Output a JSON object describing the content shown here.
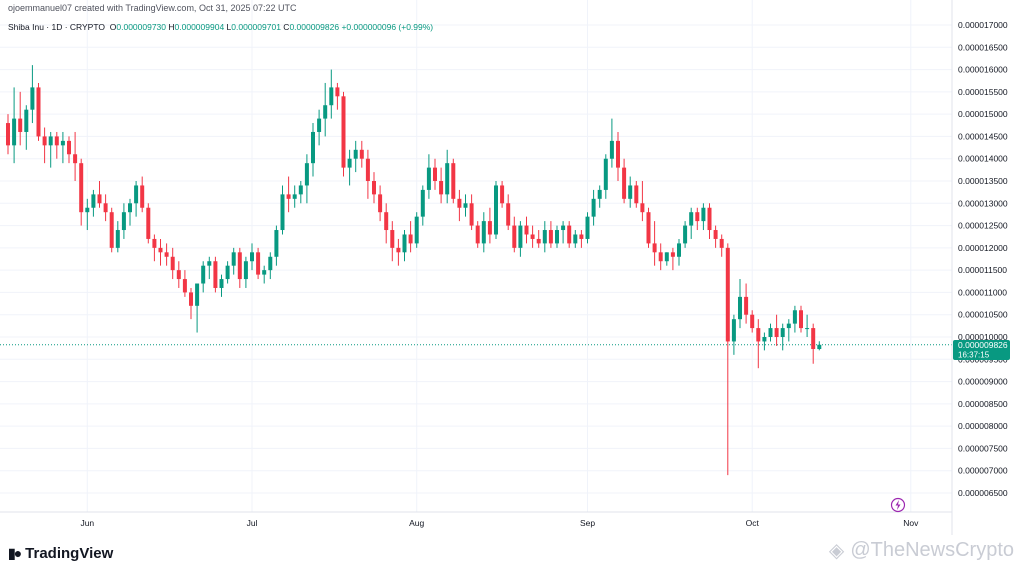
{
  "header": {
    "created_by": "ojoemmanuel07 created with TradingView.com, Oct 31, 2025 07:22 UTC"
  },
  "symbol_bar": {
    "symbol": "Shiba Inu · 1D · CRYPTO",
    "o_label": "O",
    "o_value": "0.000009730",
    "h_label": "H",
    "h_value": "0.000009904",
    "l_label": "L",
    "l_value": "0.000009701",
    "c_label": "C",
    "c_value": "0.000009826",
    "change": "+0.000000096 (+0.99%)"
  },
  "price_badge": {
    "price": "0.000009826",
    "countdown": "16:37:15"
  },
  "footer": {
    "brand": "TradingView",
    "watermark": "@TheNewsCrypto"
  },
  "colors": {
    "up": "#089981",
    "down": "#f23645",
    "grid": "#f0f3fa",
    "last_price": "#089981"
  },
  "icons": {
    "lightning": "lightning-icon",
    "brand_logo": "tradingview-logo-icon",
    "watermark": "watermark-logo-icon"
  },
  "chart_data": {
    "type": "candlestick",
    "title": "",
    "xlabel": "",
    "ylabel": "",
    "ylim": [
      6.3e-06,
      1.71e-05
    ],
    "grid": true,
    "y_ticks": [
      "0.000006500",
      "0.000007000",
      "0.000007500",
      "0.000008000",
      "0.000008500",
      "0.000009000",
      "0.000009500",
      "0.000010000",
      "0.000010500",
      "0.000011000",
      "0.000011500",
      "0.000012000",
      "0.000012500",
      "0.000013000",
      "0.000013500",
      "0.000014000",
      "0.000014500",
      "0.000015000",
      "0.000015500",
      "0.000016000",
      "0.000016500",
      "0.000017000"
    ],
    "x_ticks": [
      {
        "label": "Jun",
        "index": 13
      },
      {
        "label": "Jul",
        "index": 40
      },
      {
        "label": "Aug",
        "index": 67
      },
      {
        "label": "Sep",
        "index": 95
      },
      {
        "label": "Oct",
        "index": 122
      },
      {
        "label": "Nov",
        "index": 148
      }
    ],
    "last_price": 9.826e-06,
    "candles": [
      [
        14.8,
        15.0,
        14.1,
        14.3
      ],
      [
        14.3,
        15.6,
        13.9,
        14.9
      ],
      [
        14.9,
        15.5,
        14.3,
        14.6
      ],
      [
        14.6,
        15.2,
        14.2,
        15.1
      ],
      [
        15.1,
        16.1,
        14.8,
        15.6
      ],
      [
        15.6,
        15.7,
        14.4,
        14.5
      ],
      [
        14.5,
        14.7,
        13.9,
        14.3
      ],
      [
        14.3,
        14.6,
        13.8,
        14.5
      ],
      [
        14.5,
        14.6,
        14.0,
        14.3
      ],
      [
        14.3,
        14.6,
        13.9,
        14.4
      ],
      [
        14.4,
        14.5,
        13.9,
        14.1
      ],
      [
        14.1,
        14.6,
        13.5,
        13.9
      ],
      [
        13.9,
        14.0,
        12.5,
        12.8
      ],
      [
        12.8,
        13.1,
        12.4,
        12.9
      ],
      [
        12.9,
        13.3,
        12.7,
        13.2
      ],
      [
        13.2,
        13.5,
        12.9,
        13.0
      ],
      [
        13.0,
        13.2,
        12.6,
        12.8
      ],
      [
        12.8,
        12.9,
        11.9,
        12.0
      ],
      [
        12.0,
        12.6,
        11.9,
        12.4
      ],
      [
        12.4,
        13.0,
        12.2,
        12.8
      ],
      [
        12.8,
        13.1,
        12.5,
        13.0
      ],
      [
        13.0,
        13.5,
        12.7,
        13.4
      ],
      [
        13.4,
        13.6,
        12.8,
        12.9
      ],
      [
        12.9,
        13.0,
        12.1,
        12.2
      ],
      [
        12.2,
        12.3,
        11.7,
        12.0
      ],
      [
        12.0,
        12.2,
        11.6,
        11.9
      ],
      [
        11.9,
        12.1,
        11.6,
        11.8
      ],
      [
        11.8,
        12.0,
        11.3,
        11.5
      ],
      [
        11.5,
        11.7,
        11.1,
        11.3
      ],
      [
        11.3,
        11.5,
        10.9,
        11.0
      ],
      [
        11.0,
        11.1,
        10.4,
        10.7
      ],
      [
        10.7,
        11.2,
        10.1,
        11.2
      ],
      [
        11.2,
        11.7,
        11.0,
        11.6
      ],
      [
        11.6,
        11.8,
        11.3,
        11.7
      ],
      [
        11.7,
        11.8,
        11.0,
        11.1
      ],
      [
        11.1,
        11.4,
        10.9,
        11.3
      ],
      [
        11.3,
        11.7,
        11.2,
        11.6
      ],
      [
        11.6,
        12.0,
        11.4,
        11.9
      ],
      [
        11.9,
        12.0,
        11.1,
        11.3
      ],
      [
        11.3,
        11.8,
        11.1,
        11.7
      ],
      [
        11.7,
        12.1,
        11.5,
        11.9
      ],
      [
        11.9,
        12.0,
        11.3,
        11.4
      ],
      [
        11.4,
        11.6,
        11.2,
        11.5
      ],
      [
        11.5,
        11.9,
        11.3,
        11.8
      ],
      [
        11.8,
        12.5,
        11.6,
        12.4
      ],
      [
        12.4,
        13.4,
        12.3,
        13.2
      ],
      [
        13.2,
        13.6,
        12.8,
        13.1
      ],
      [
        13.1,
        13.4,
        12.9,
        13.2
      ],
      [
        13.2,
        13.5,
        13.0,
        13.4
      ],
      [
        13.4,
        14.1,
        13.0,
        13.9
      ],
      [
        13.9,
        14.8,
        13.6,
        14.6
      ],
      [
        14.6,
        15.1,
        14.3,
        14.9
      ],
      [
        14.9,
        15.7,
        14.5,
        15.2
      ],
      [
        15.2,
        16.0,
        14.9,
        15.6
      ],
      [
        15.6,
        15.7,
        15.1,
        15.4
      ],
      [
        15.4,
        15.5,
        13.6,
        13.8
      ],
      [
        13.8,
        14.2,
        13.4,
        14.0
      ],
      [
        14.0,
        14.4,
        13.7,
        14.2
      ],
      [
        14.2,
        14.4,
        13.8,
        14.0
      ],
      [
        14.0,
        14.2,
        13.1,
        13.5
      ],
      [
        13.5,
        13.7,
        13.0,
        13.2
      ],
      [
        13.2,
        13.4,
        12.6,
        12.8
      ],
      [
        12.8,
        13.0,
        12.1,
        12.4
      ],
      [
        12.4,
        12.6,
        11.7,
        12.0
      ],
      [
        12.0,
        12.2,
        11.6,
        11.9
      ],
      [
        11.9,
        12.4,
        11.7,
        12.3
      ],
      [
        12.3,
        12.6,
        11.9,
        12.1
      ],
      [
        12.1,
        12.8,
        12.0,
        12.7
      ],
      [
        12.7,
        13.4,
        12.5,
        13.3
      ],
      [
        13.3,
        14.1,
        13.1,
        13.8
      ],
      [
        13.8,
        14.0,
        13.3,
        13.5
      ],
      [
        13.5,
        13.8,
        13.0,
        13.2
      ],
      [
        13.2,
        14.2,
        13.0,
        13.9
      ],
      [
        13.9,
        14.0,
        13.0,
        13.1
      ],
      [
        13.1,
        13.3,
        12.6,
        12.9
      ],
      [
        12.9,
        13.2,
        12.7,
        13.0
      ],
      [
        13.0,
        13.2,
        12.4,
        12.5
      ],
      [
        12.5,
        12.6,
        12.0,
        12.1
      ],
      [
        12.1,
        12.8,
        11.9,
        12.6
      ],
      [
        12.6,
        12.9,
        12.1,
        12.3
      ],
      [
        12.3,
        13.5,
        12.2,
        13.4
      ],
      [
        13.4,
        13.5,
        12.9,
        13.0
      ],
      [
        13.0,
        13.2,
        12.4,
        12.5
      ],
      [
        12.5,
        12.7,
        11.9,
        12.0
      ],
      [
        12.0,
        12.6,
        11.8,
        12.5
      ],
      [
        12.5,
        12.7,
        12.1,
        12.3
      ],
      [
        12.3,
        12.5,
        12.0,
        12.2
      ],
      [
        12.2,
        12.4,
        12.0,
        12.1
      ],
      [
        12.1,
        12.6,
        11.9,
        12.4
      ],
      [
        12.4,
        12.6,
        12.0,
        12.1
      ],
      [
        12.1,
        12.5,
        12.0,
        12.4
      ],
      [
        12.4,
        12.6,
        12.1,
        12.5
      ],
      [
        12.5,
        12.6,
        12.0,
        12.1
      ],
      [
        12.1,
        12.4,
        12.0,
        12.3
      ],
      [
        12.3,
        12.4,
        12.0,
        12.2
      ],
      [
        12.2,
        12.8,
        12.1,
        12.7
      ],
      [
        12.7,
        13.3,
        12.5,
        13.1
      ],
      [
        13.1,
        13.4,
        12.9,
        13.3
      ],
      [
        13.3,
        14.1,
        13.1,
        14.0
      ],
      [
        14.0,
        14.9,
        13.8,
        14.4
      ],
      [
        14.4,
        14.6,
        13.5,
        13.8
      ],
      [
        13.8,
        14.0,
        13.0,
        13.1
      ],
      [
        13.1,
        13.6,
        12.9,
        13.4
      ],
      [
        13.4,
        13.5,
        12.9,
        13.0
      ],
      [
        13.0,
        13.5,
        12.6,
        12.8
      ],
      [
        12.8,
        12.9,
        12.0,
        12.1
      ],
      [
        12.1,
        12.6,
        11.6,
        11.9
      ],
      [
        11.9,
        12.1,
        11.5,
        11.7
      ],
      [
        11.7,
        11.9,
        11.6,
        11.9
      ],
      [
        11.9,
        12.0,
        11.5,
        11.8
      ],
      [
        11.8,
        12.2,
        11.6,
        12.1
      ],
      [
        12.1,
        12.6,
        12.0,
        12.5
      ],
      [
        12.5,
        12.9,
        12.2,
        12.8
      ],
      [
        12.8,
        12.9,
        12.4,
        12.6
      ],
      [
        12.6,
        13.0,
        12.4,
        12.9
      ],
      [
        12.9,
        13.0,
        12.2,
        12.4
      ],
      [
        12.4,
        12.5,
        12.0,
        12.2
      ],
      [
        12.2,
        12.3,
        11.8,
        12.0
      ],
      [
        12.0,
        12.1,
        6.9,
        9.9
      ],
      [
        9.9,
        10.5,
        9.6,
        10.4
      ],
      [
        10.4,
        11.3,
        10.2,
        10.9
      ],
      [
        10.9,
        11.2,
        10.3,
        10.5
      ],
      [
        10.5,
        10.6,
        10.1,
        10.2
      ],
      [
        10.2,
        10.4,
        9.3,
        9.9
      ],
      [
        9.9,
        10.1,
        9.7,
        10.0
      ],
      [
        10.0,
        10.3,
        9.9,
        10.2
      ],
      [
        10.2,
        10.5,
        9.8,
        10.0
      ],
      [
        10.0,
        10.3,
        9.7,
        10.2
      ],
      [
        10.2,
        10.4,
        9.9,
        10.3
      ],
      [
        10.3,
        10.7,
        10.1,
        10.6
      ],
      [
        10.6,
        10.7,
        10.1,
        10.2
      ],
      [
        10.2,
        10.5,
        10.0,
        10.2
      ],
      [
        10.2,
        10.3,
        9.4,
        9.73
      ],
      [
        9.73,
        9.904,
        9.701,
        9.826
      ]
    ],
    "candle_scale": "values are multiplied by 1e-6"
  }
}
